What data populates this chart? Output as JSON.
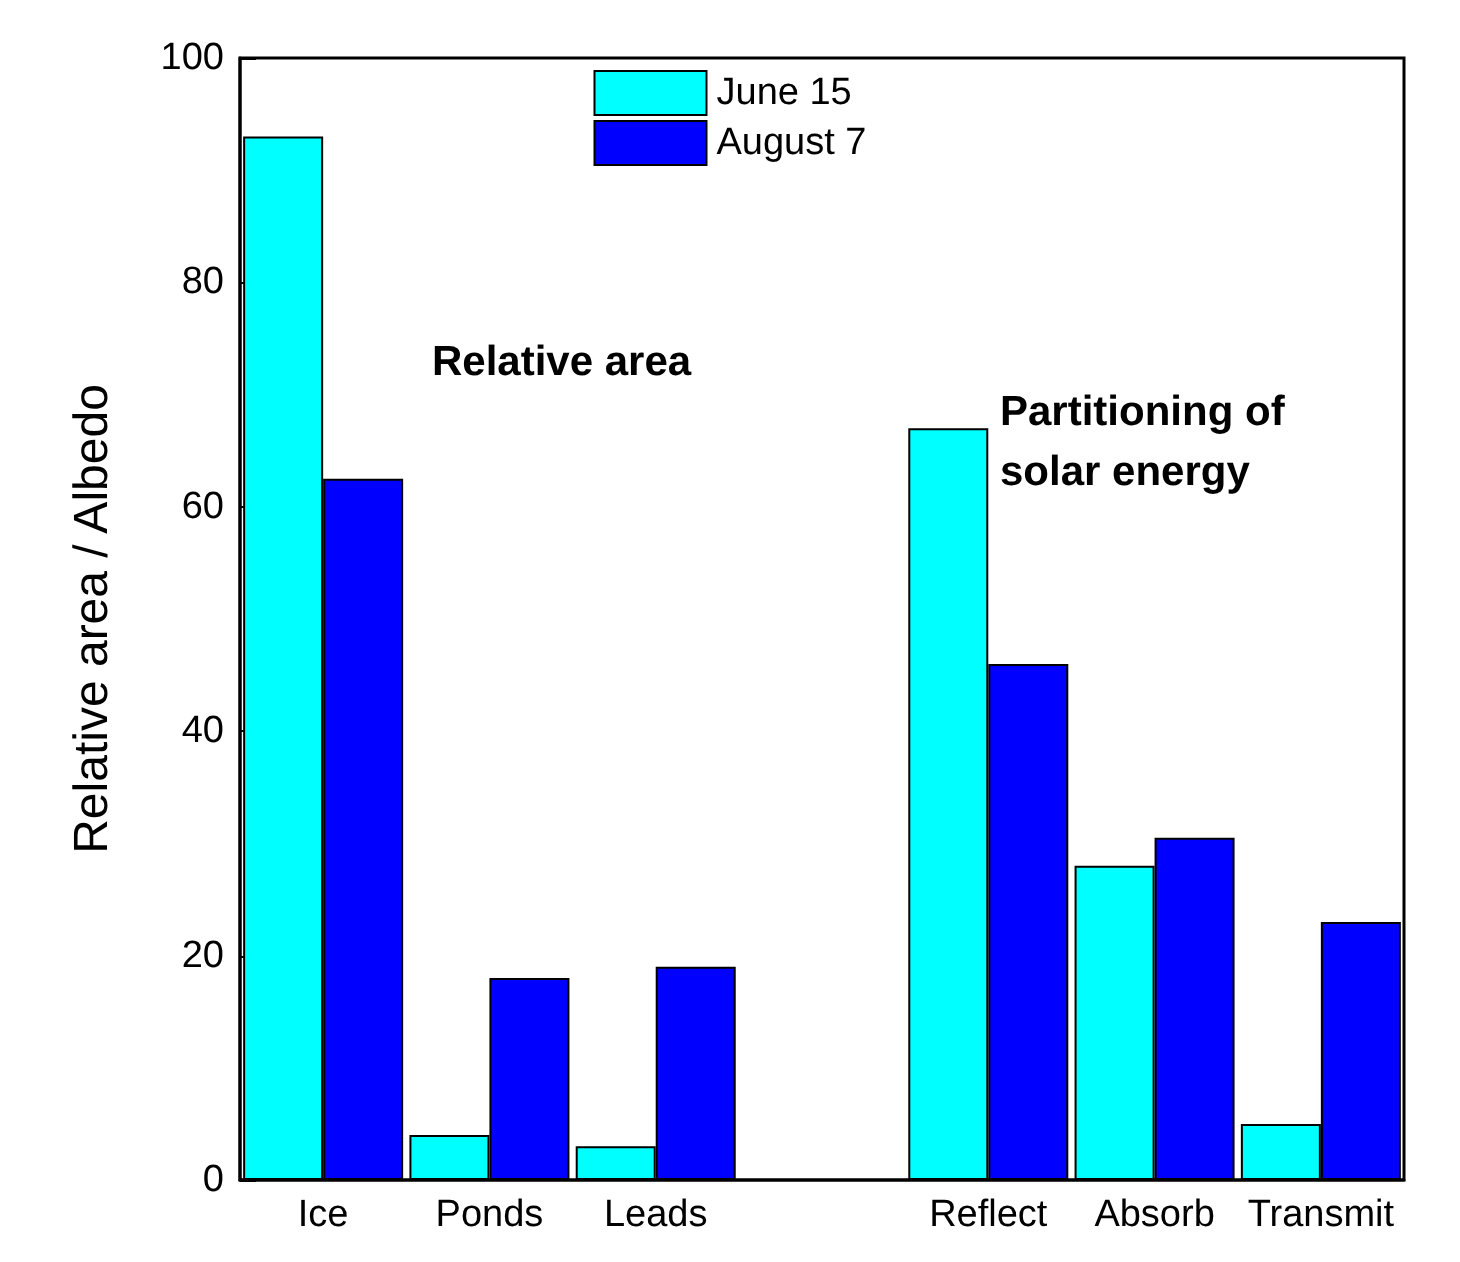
{
  "chart_data": {
    "type": "bar",
    "ylabel": "Relative area / Albedo",
    "categories": [
      "Ice",
      "Ponds",
      "Leads",
      null,
      "Reflect",
      "Absorb",
      "Transmit"
    ],
    "series": [
      {
        "name": "June 15",
        "color": "#00ffff",
        "values": [
          93,
          4,
          3,
          null,
          67,
          28,
          5
        ]
      },
      {
        "name": "August 7",
        "color": "#0000ff",
        "values": [
          62.5,
          18,
          19,
          null,
          46,
          30.5,
          23
        ]
      }
    ],
    "ylim": [
      0,
      100
    ],
    "yticks": [
      0,
      20,
      40,
      60,
      80,
      100
    ],
    "grid": false,
    "legend": "top",
    "annotations": [
      "Relative area",
      "Partitioning of\nsolar energy"
    ]
  }
}
